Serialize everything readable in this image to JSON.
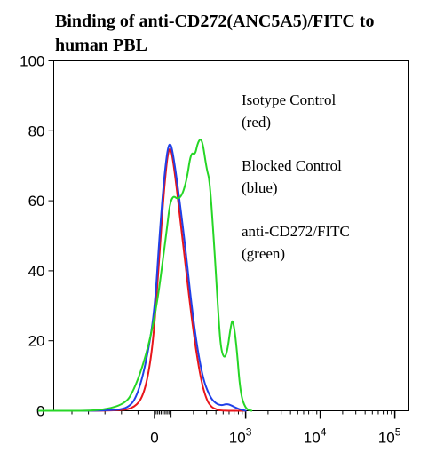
{
  "chart_data": {
    "type": "line",
    "title": "Binding of anti-CD272(ANC5A5)/FITC to human PBL",
    "title_lines": [
      "Binding of anti-CD272(ANC5A5)/FITC to",
      "human PBL"
    ],
    "xlabel": "",
    "ylabel": "",
    "ylim": [
      0,
      100
    ],
    "y_ticks": [
      0,
      20,
      40,
      60,
      80,
      100
    ],
    "x_scale": "biexponential",
    "xlim": [
      -700,
      300000
    ],
    "x_ticks": [
      {
        "value": 0,
        "label": "0"
      },
      {
        "value": 1000,
        "label": "10",
        "exp": "3"
      },
      {
        "value": 10000,
        "label": "10",
        "exp": "4"
      },
      {
        "value": 100000,
        "label": "10",
        "exp": "5"
      }
    ],
    "grid": false,
    "legend_position": "upper right",
    "legend": [
      {
        "lines": [
          "Isotype Control",
          "(red)"
        ]
      },
      {
        "lines": [
          "Blocked Control",
          "(blue)"
        ]
      },
      {
        "lines": [
          "anti-CD272/FITC",
          "(green)"
        ]
      }
    ],
    "series": [
      {
        "color": "#e8151b",
        "x": [
          -700,
          -200,
          -120,
          -70,
          -30,
          0,
          30,
          60,
          90,
          110,
          150,
          200,
          250,
          300,
          350,
          400,
          450,
          1000
        ],
        "y": [
          0,
          0,
          1,
          4,
          12,
          24,
          45,
          65,
          77,
          70,
          45,
          22,
          9,
          3,
          1,
          0.5,
          0,
          0
        ]
      },
      {
        "color": "#2040e8",
        "x": [
          -700,
          -250,
          -150,
          -100,
          -50,
          0,
          30,
          60,
          90,
          110,
          150,
          200,
          260,
          330,
          400,
          480,
          560,
          650,
          800,
          1000
        ],
        "y": [
          0,
          0,
          1,
          5,
          14,
          28,
          50,
          68,
          78,
          72,
          50,
          25,
          10,
          4,
          2,
          1.5,
          2,
          1.5,
          0.5,
          0
        ]
      },
      {
        "color": "#26d626",
        "x": [
          -700,
          -200,
          -100,
          0,
          70,
          100,
          130,
          160,
          185,
          210,
          230,
          260,
          300,
          330,
          380,
          440,
          480,
          550,
          640,
          680,
          760,
          850,
          1000,
          1200
        ],
        "y": [
          0,
          0,
          8,
          25,
          50,
          62,
          60,
          65,
          74,
          73,
          77,
          78,
          69,
          66,
          47,
          24,
          16,
          15,
          25,
          26,
          18,
          5,
          0.5,
          0
        ]
      }
    ]
  }
}
